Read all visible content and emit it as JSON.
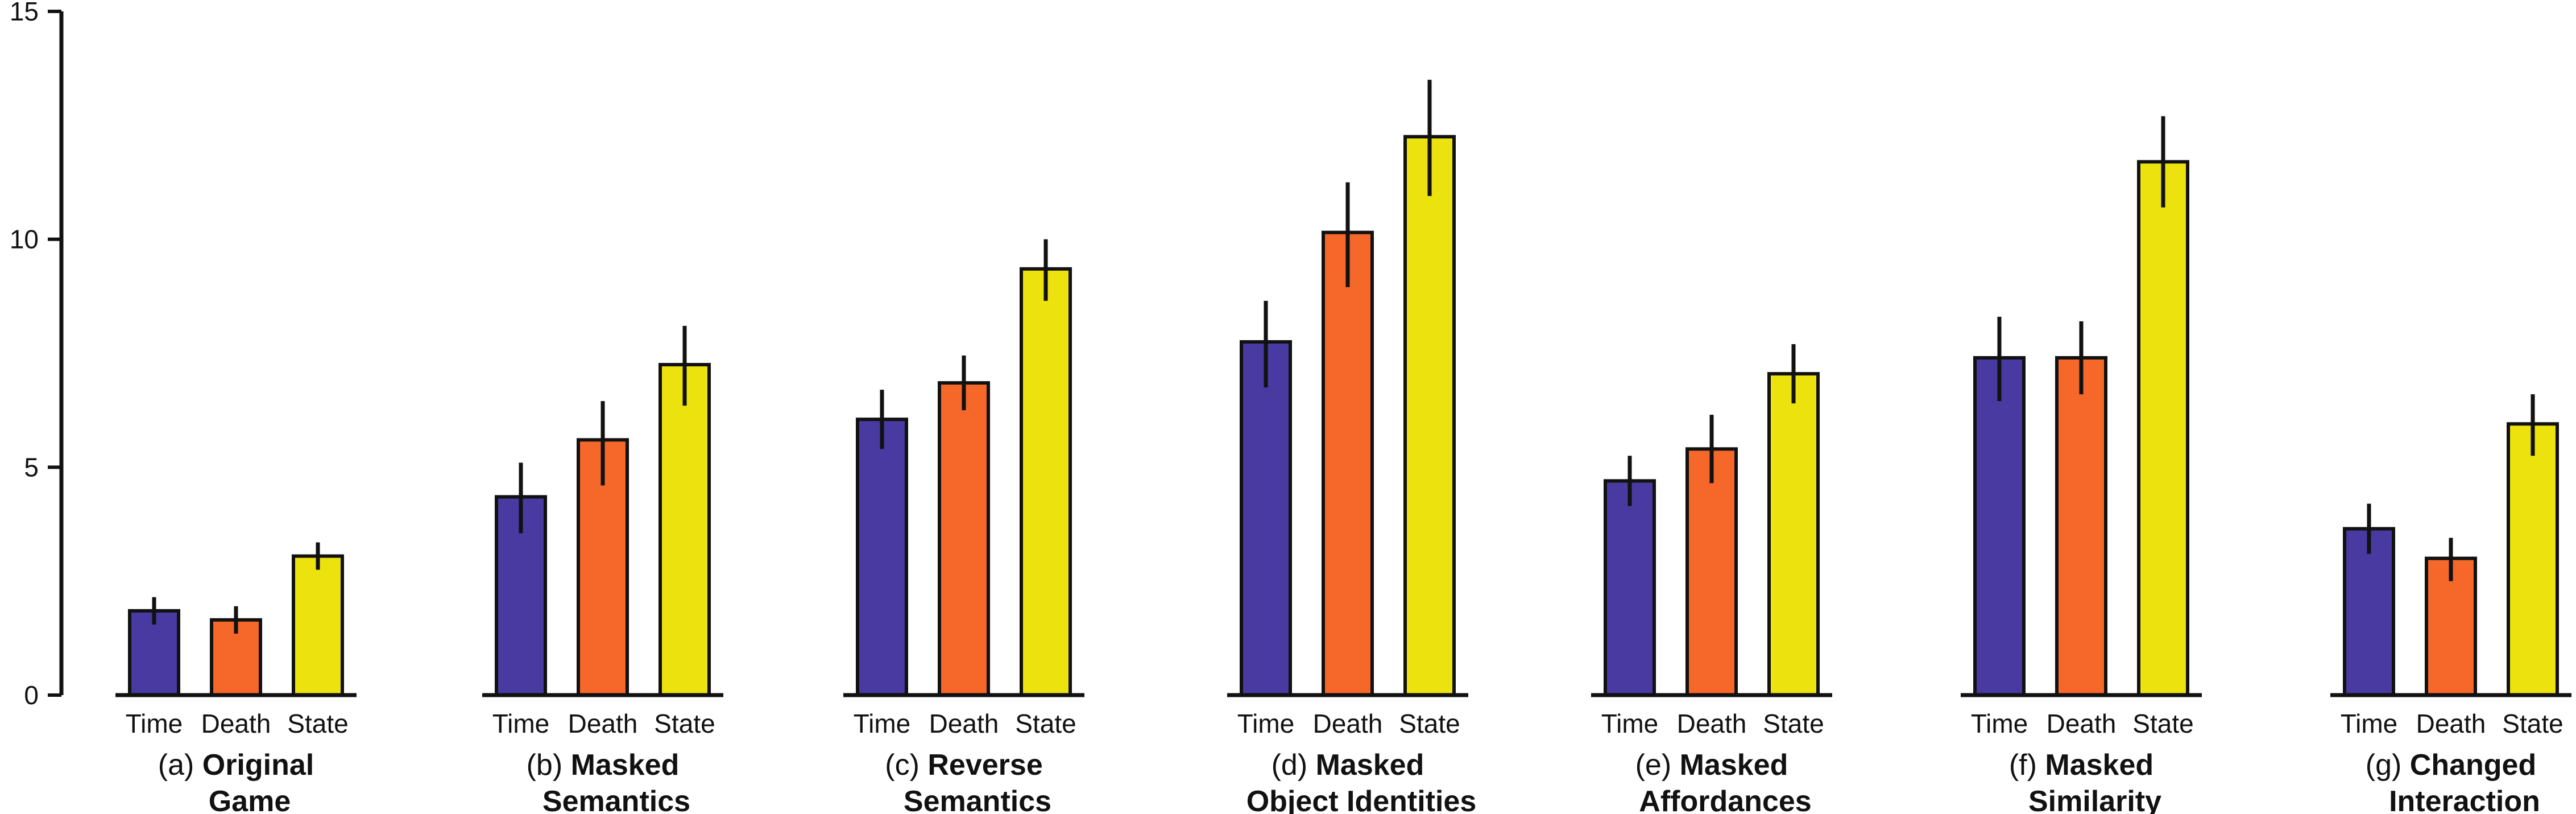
{
  "chart_data": {
    "type": "bar",
    "title": "",
    "xlabel": "",
    "ylabel": "",
    "ylim": [
      0,
      15
    ],
    "yticks": [
      0,
      5,
      10,
      15
    ],
    "grid": false,
    "category_labels": [
      "Time",
      "Death",
      "State"
    ],
    "series_colors": {
      "Time": "#483AA0",
      "Death": "#F5682A",
      "State": "#ECE20E"
    },
    "groups": [
      {
        "prefix": "(a)",
        "title_line1": "Original",
        "title_line2": "Game",
        "bars": [
          {
            "category": "Time",
            "value": 1.85,
            "err_low": 1.55,
            "err_high": 2.15
          },
          {
            "category": "Death",
            "value": 1.65,
            "err_low": 1.35,
            "err_high": 1.95
          },
          {
            "category": "State",
            "value": 3.05,
            "err_low": 2.75,
            "err_high": 3.35
          }
        ]
      },
      {
        "prefix": "(b)",
        "title_line1": "Masked",
        "title_line2": "Semantics",
        "bars": [
          {
            "category": "Time",
            "value": 4.35,
            "err_low": 3.55,
            "err_high": 5.1
          },
          {
            "category": "Death",
            "value": 5.6,
            "err_low": 4.6,
            "err_high": 6.45
          },
          {
            "category": "State",
            "value": 7.25,
            "err_low": 6.35,
            "err_high": 8.1
          }
        ]
      },
      {
        "prefix": "(c)",
        "title_line1": "Reverse",
        "title_line2": "Semantics",
        "bars": [
          {
            "category": "Time",
            "value": 6.05,
            "err_low": 5.4,
            "err_high": 6.7
          },
          {
            "category": "Death",
            "value": 6.85,
            "err_low": 6.25,
            "err_high": 7.45
          },
          {
            "category": "State",
            "value": 9.35,
            "err_low": 8.65,
            "err_high": 10.0
          }
        ]
      },
      {
        "prefix": "(d)",
        "title_line1": "Masked",
        "title_line2": "Object Identities",
        "bars": [
          {
            "category": "Time",
            "value": 7.75,
            "err_low": 6.75,
            "err_high": 8.65
          },
          {
            "category": "Death",
            "value": 10.15,
            "err_low": 8.95,
            "err_high": 11.25
          },
          {
            "category": "State",
            "value": 12.25,
            "err_low": 10.95,
            "err_high": 13.5
          }
        ]
      },
      {
        "prefix": "(e)",
        "title_line1": "Masked",
        "title_line2": "Affordances",
        "bars": [
          {
            "category": "Time",
            "value": 4.7,
            "err_low": 4.15,
            "err_high": 5.25
          },
          {
            "category": "Death",
            "value": 5.4,
            "err_low": 4.65,
            "err_high": 6.15
          },
          {
            "category": "State",
            "value": 7.05,
            "err_low": 6.4,
            "err_high": 7.7
          }
        ]
      },
      {
        "prefix": "(f)",
        "title_line1": "Masked",
        "title_line2": "Similarity",
        "bars": [
          {
            "category": "Time",
            "value": 7.4,
            "err_low": 6.45,
            "err_high": 8.3
          },
          {
            "category": "Death",
            "value": 7.4,
            "err_low": 6.6,
            "err_high": 8.2
          },
          {
            "category": "State",
            "value": 11.7,
            "err_low": 10.7,
            "err_high": 12.7
          }
        ]
      },
      {
        "prefix": "(g)",
        "title_line1": "Changed",
        "title_line2": "Interaction",
        "bars": [
          {
            "category": "Time",
            "value": 3.65,
            "err_low": 3.1,
            "err_high": 4.2
          },
          {
            "category": "Death",
            "value": 3.0,
            "err_low": 2.5,
            "err_high": 3.45
          },
          {
            "category": "State",
            "value": 5.95,
            "err_low": 5.25,
            "err_high": 6.6
          }
        ]
      }
    ]
  }
}
